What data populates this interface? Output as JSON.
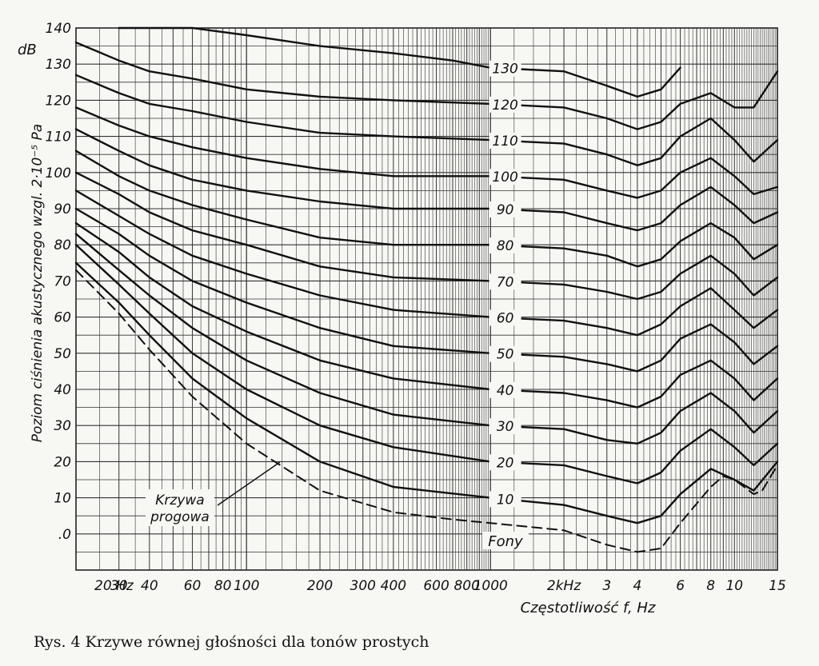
{
  "chart_data": {
    "type": "line",
    "ylabel": "Poziom ciśnienia akustycznego wzgl. 2·10⁻⁵ Pa",
    "y_unit": "dB",
    "xlabel": "Częstotliwość f, Hz",
    "caption": "Rys. 4 Krzywe równej głośności dla tonów prostych",
    "x_scale": "log",
    "xlim": [
      20,
      15000
    ],
    "ylim": [
      -10,
      140
    ],
    "y_ticks": [
      140,
      130,
      120,
      110,
      100,
      90,
      80,
      70,
      60,
      50,
      40,
      30,
      20,
      10,
      0
    ],
    "y_tick_labels": [
      "140",
      "130",
      "120",
      "110",
      "100",
      "90",
      "80",
      "70",
      "60",
      "50",
      "40",
      "30",
      "20",
      "10",
      ".0"
    ],
    "x_ticks": [
      {
        "f": 20,
        "label": "20 Hz"
      },
      {
        "f": 30,
        "label": "30"
      },
      {
        "f": 40,
        "label": "40"
      },
      {
        "f": 60,
        "label": "60"
      },
      {
        "f": 80,
        "label": "80"
      },
      {
        "f": 100,
        "label": "100"
      },
      {
        "f": 200,
        "label": "200"
      },
      {
        "f": 300,
        "label": "300"
      },
      {
        "f": 400,
        "label": "400"
      },
      {
        "f": 600,
        "label": "600"
      },
      {
        "f": 800,
        "label": "800"
      },
      {
        "f": 1000,
        "label": "1000"
      },
      {
        "f": 2000,
        "label": "2kHz"
      },
      {
        "f": 3000,
        "label": "3"
      },
      {
        "f": 4000,
        "label": "4"
      },
      {
        "f": 6000,
        "label": "6"
      },
      {
        "f": 8000,
        "label": "8"
      },
      {
        "f": 10000,
        "label": "10"
      },
      {
        "f": 15000,
        "label": "15"
      }
    ],
    "grid": true,
    "phon_unit_label": "Fony",
    "threshold_label_line1": "Krzywa",
    "threshold_label_line2": "progowa",
    "series": [
      {
        "name": "130",
        "points": [
          [
            30,
            140
          ],
          [
            60,
            140
          ],
          [
            100,
            138
          ],
          [
            200,
            135
          ],
          [
            400,
            133
          ],
          [
            700,
            131
          ],
          [
            1000,
            129
          ],
          [
            2000,
            128
          ],
          [
            3000,
            124
          ],
          [
            4000,
            121
          ],
          [
            5000,
            123
          ],
          [
            6000,
            129
          ]
        ]
      },
      {
        "name": "120",
        "points": [
          [
            20,
            136
          ],
          [
            30,
            131
          ],
          [
            40,
            128
          ],
          [
            60,
            126
          ],
          [
            100,
            123
          ],
          [
            200,
            121
          ],
          [
            400,
            120
          ],
          [
            1000,
            119
          ],
          [
            2000,
            118
          ],
          [
            3000,
            115
          ],
          [
            4000,
            112
          ],
          [
            5000,
            114
          ],
          [
            6000,
            119
          ],
          [
            8000,
            122
          ],
          [
            10000,
            118
          ],
          [
            12000,
            118
          ],
          [
            15000,
            128
          ]
        ]
      },
      {
        "name": "110",
        "points": [
          [
            20,
            127
          ],
          [
            30,
            122
          ],
          [
            40,
            119
          ],
          [
            60,
            117
          ],
          [
            100,
            114
          ],
          [
            200,
            111
          ],
          [
            400,
            110
          ],
          [
            1000,
            109
          ],
          [
            2000,
            108
          ],
          [
            3000,
            105
          ],
          [
            4000,
            102
          ],
          [
            5000,
            104
          ],
          [
            6000,
            110
          ],
          [
            8000,
            115
          ],
          [
            10000,
            109
          ],
          [
            12000,
            103
          ],
          [
            15000,
            109
          ]
        ]
      },
      {
        "name": "100",
        "points": [
          [
            20,
            118
          ],
          [
            30,
            113
          ],
          [
            40,
            110
          ],
          [
            60,
            107
          ],
          [
            100,
            104
          ],
          [
            200,
            101
          ],
          [
            400,
            99
          ],
          [
            1000,
            99
          ],
          [
            2000,
            98
          ],
          [
            3000,
            95
          ],
          [
            4000,
            93
          ],
          [
            5000,
            95
          ],
          [
            6000,
            100
          ],
          [
            8000,
            104
          ],
          [
            10000,
            99
          ],
          [
            12000,
            94
          ],
          [
            15000,
            96
          ]
        ]
      },
      {
        "name": "90",
        "points": [
          [
            20,
            112
          ],
          [
            30,
            106
          ],
          [
            40,
            102
          ],
          [
            60,
            98
          ],
          [
            100,
            95
          ],
          [
            200,
            92
          ],
          [
            400,
            90
          ],
          [
            1000,
            90
          ],
          [
            2000,
            89
          ],
          [
            3000,
            86
          ],
          [
            4000,
            84
          ],
          [
            5000,
            86
          ],
          [
            6000,
            91
          ],
          [
            8000,
            96
          ],
          [
            10000,
            91
          ],
          [
            12000,
            86
          ],
          [
            15000,
            89
          ]
        ]
      },
      {
        "name": "80",
        "points": [
          [
            20,
            106
          ],
          [
            30,
            99
          ],
          [
            40,
            95
          ],
          [
            60,
            91
          ],
          [
            100,
            87
          ],
          [
            200,
            82
          ],
          [
            400,
            80
          ],
          [
            1000,
            80
          ],
          [
            2000,
            79
          ],
          [
            3000,
            77
          ],
          [
            4000,
            74
          ],
          [
            5000,
            76
          ],
          [
            6000,
            81
          ],
          [
            8000,
            86
          ],
          [
            10000,
            82
          ],
          [
            12000,
            76
          ],
          [
            15000,
            80
          ]
        ]
      },
      {
        "name": "70",
        "points": [
          [
            20,
            100
          ],
          [
            30,
            94
          ],
          [
            40,
            89
          ],
          [
            60,
            84
          ],
          [
            100,
            80
          ],
          [
            200,
            74
          ],
          [
            400,
            71
          ],
          [
            1000,
            70
          ],
          [
            2000,
            69
          ],
          [
            3000,
            67
          ],
          [
            4000,
            65
          ],
          [
            5000,
            67
          ],
          [
            6000,
            72
          ],
          [
            8000,
            77
          ],
          [
            10000,
            72
          ],
          [
            12000,
            66
          ],
          [
            15000,
            71
          ]
        ]
      },
      {
        "name": "60",
        "points": [
          [
            20,
            95
          ],
          [
            30,
            88
          ],
          [
            40,
            83
          ],
          [
            60,
            77
          ],
          [
            100,
            72
          ],
          [
            200,
            66
          ],
          [
            400,
            62
          ],
          [
            1000,
            60
          ],
          [
            2000,
            59
          ],
          [
            3000,
            57
          ],
          [
            4000,
            55
          ],
          [
            5000,
            58
          ],
          [
            6000,
            63
          ],
          [
            8000,
            68
          ],
          [
            10000,
            62
          ],
          [
            12000,
            57
          ],
          [
            15000,
            62
          ]
        ]
      },
      {
        "name": "50",
        "points": [
          [
            20,
            90
          ],
          [
            30,
            83
          ],
          [
            40,
            77
          ],
          [
            60,
            70
          ],
          [
            100,
            64
          ],
          [
            200,
            57
          ],
          [
            400,
            52
          ],
          [
            1000,
            50
          ],
          [
            2000,
            49
          ],
          [
            3000,
            47
          ],
          [
            4000,
            45
          ],
          [
            5000,
            48
          ],
          [
            6000,
            54
          ],
          [
            8000,
            58
          ],
          [
            10000,
            53
          ],
          [
            12000,
            47
          ],
          [
            15000,
            52
          ]
        ]
      },
      {
        "name": "40",
        "points": [
          [
            20,
            86
          ],
          [
            30,
            78
          ],
          [
            40,
            71
          ],
          [
            60,
            63
          ],
          [
            100,
            56
          ],
          [
            200,
            48
          ],
          [
            400,
            43
          ],
          [
            1000,
            40
          ],
          [
            2000,
            39
          ],
          [
            3000,
            37
          ],
          [
            4000,
            35
          ],
          [
            5000,
            38
          ],
          [
            6000,
            44
          ],
          [
            8000,
            48
          ],
          [
            10000,
            43
          ],
          [
            12000,
            37
          ],
          [
            15000,
            43
          ]
        ]
      },
      {
        "name": "30",
        "points": [
          [
            20,
            83
          ],
          [
            30,
            73
          ],
          [
            40,
            66
          ],
          [
            60,
            57
          ],
          [
            100,
            48
          ],
          [
            200,
            39
          ],
          [
            400,
            33
          ],
          [
            1000,
            30
          ],
          [
            2000,
            29
          ],
          [
            3000,
            26
          ],
          [
            4000,
            25
          ],
          [
            5000,
            28
          ],
          [
            6000,
            34
          ],
          [
            8000,
            39
          ],
          [
            10000,
            34
          ],
          [
            12000,
            28
          ],
          [
            15000,
            34
          ]
        ]
      },
      {
        "name": "20",
        "points": [
          [
            20,
            80
          ],
          [
            30,
            69
          ],
          [
            40,
            61
          ],
          [
            60,
            50
          ],
          [
            100,
            40
          ],
          [
            200,
            30
          ],
          [
            400,
            24
          ],
          [
            1000,
            20
          ],
          [
            2000,
            19
          ],
          [
            3000,
            16
          ],
          [
            4000,
            14
          ],
          [
            5000,
            17
          ],
          [
            6000,
            23
          ],
          [
            8000,
            29
          ],
          [
            10000,
            24
          ],
          [
            12000,
            19
          ],
          [
            15000,
            25
          ]
        ]
      },
      {
        "name": "10",
        "points": [
          [
            20,
            75
          ],
          [
            30,
            64
          ],
          [
            40,
            55
          ],
          [
            60,
            43
          ],
          [
            100,
            32
          ],
          [
            200,
            20
          ],
          [
            400,
            13
          ],
          [
            1000,
            10
          ],
          [
            2000,
            8
          ],
          [
            3000,
            5
          ],
          [
            4000,
            3
          ],
          [
            5000,
            5
          ],
          [
            6000,
            11
          ],
          [
            8000,
            18
          ],
          [
            10000,
            15
          ],
          [
            12000,
            12
          ],
          [
            15000,
            20
          ]
        ]
      },
      {
        "name": "threshold",
        "dashed": true,
        "points": [
          [
            20,
            73
          ],
          [
            30,
            61
          ],
          [
            40,
            51
          ],
          [
            60,
            38
          ],
          [
            100,
            25
          ],
          [
            200,
            12
          ],
          [
            400,
            6
          ],
          [
            700,
            4
          ],
          [
            1000,
            3
          ],
          [
            2000,
            1
          ],
          [
            3000,
            -3
          ],
          [
            4000,
            -5
          ],
          [
            5000,
            -4
          ],
          [
            6000,
            3
          ],
          [
            8000,
            13
          ],
          [
            9000,
            16
          ],
          [
            10000,
            15
          ],
          [
            12000,
            11
          ],
          [
            13000,
            12
          ],
          [
            15000,
            19
          ]
        ]
      }
    ]
  }
}
